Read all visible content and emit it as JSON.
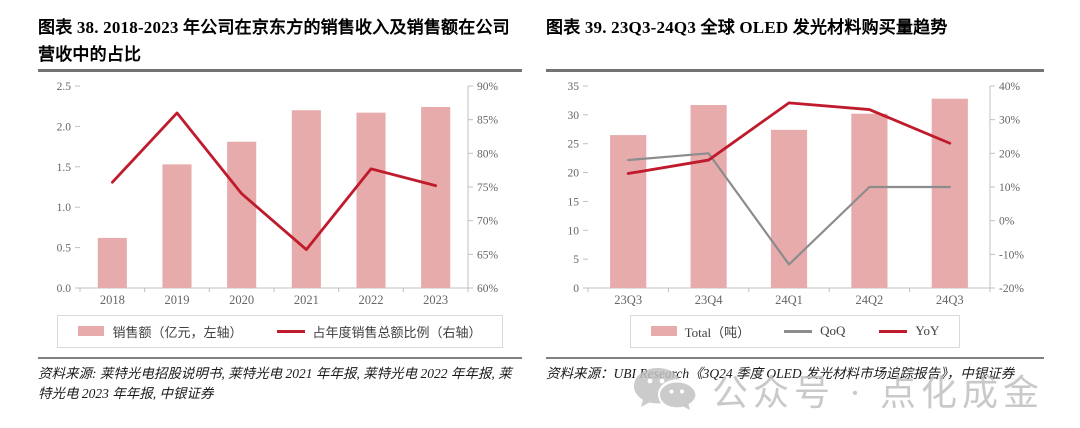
{
  "figures": [
    {
      "title": "图表 38. 2018-2023 年公司在京东方的销售收入及销售额在公司营收中的占比",
      "source": "资料来源: 莱特光电招股说明书, 莱特光电 2021 年年报, 莱特光电 2022 年年报, 莱特光电 2023 年年报, 中银证券"
    },
    {
      "title": "图表 39. 23Q3-24Q3 全球 OLED 发光材料购买量趋势",
      "source": "资料来源：UBI Research《3Q24 季度 OLED 发光材料市场追踪报告》，中银证券"
    }
  ],
  "chart_data": [
    {
      "type": "combo_bar_line",
      "title": "图表 38. 2018-2023 年公司在京东方的销售收入及销售额在公司营收中的占比",
      "categories": [
        "2018",
        "2019",
        "2020",
        "2021",
        "2022",
        "2023"
      ],
      "series": [
        {
          "name": "销售额（亿元，左轴）",
          "kind": "bar",
          "axis": "left",
          "color": "#e7abab",
          "values": [
            0.62,
            1.53,
            1.81,
            2.2,
            2.17,
            2.24
          ]
        },
        {
          "name": "占年度销售总额比例（右轴）",
          "kind": "line",
          "axis": "right",
          "color": "#bf1b2c",
          "width": 2.8,
          "values": [
            75.7,
            86.0,
            74.0,
            65.7,
            77.7,
            75.2
          ]
        }
      ],
      "left_axis": {
        "min": 0,
        "max": 2.5,
        "step": 0.5,
        "labels": [
          "0.0",
          "0.5",
          "1.0",
          "1.5",
          "2.0",
          "2.5"
        ]
      },
      "right_axis": {
        "min": 60,
        "max": 90,
        "step": 5,
        "unit": "%",
        "labels": [
          "60%",
          "65%",
          "70%",
          "75%",
          "80%",
          "85%",
          "90%"
        ]
      },
      "grid": false,
      "legend_position": "bottom"
    },
    {
      "type": "combo_bar_line",
      "title": "图表 39. 23Q3-24Q3 全球 OLED 发光材料购买量趋势",
      "categories": [
        "23Q3",
        "23Q4",
        "24Q1",
        "24Q2",
        "24Q3"
      ],
      "series": [
        {
          "name": "Total（吨）",
          "kind": "bar",
          "axis": "left",
          "color": "#e7abab",
          "values": [
            26.5,
            31.7,
            27.4,
            30.2,
            32.8
          ]
        },
        {
          "name": "QoQ",
          "kind": "line",
          "axis": "right",
          "color": "#8c8c8c",
          "width": 2.2,
          "values": [
            18,
            20,
            -13,
            10,
            10
          ]
        },
        {
          "name": "YoY",
          "kind": "line",
          "axis": "right",
          "color": "#bf1b2c",
          "width": 2.8,
          "values": [
            14,
            18,
            35,
            33,
            23
          ]
        }
      ],
      "left_axis": {
        "min": 0,
        "max": 35,
        "step": 5,
        "labels": [
          "0",
          "5",
          "10",
          "15",
          "20",
          "25",
          "30",
          "35"
        ]
      },
      "right_axis": {
        "min": -20,
        "max": 40,
        "step": 10,
        "unit": "%",
        "labels": [
          "-20%",
          "-10%",
          "0%",
          "10%",
          "20%",
          "30%",
          "40%"
        ]
      },
      "grid": false,
      "legend_position": "bottom"
    }
  ],
  "watermark": {
    "icon": "wechat-icon",
    "text": "公众号 · 点化成金"
  },
  "style_colors": {
    "bar_fill": "#e7abab",
    "yoy_line": "#bf1b2c",
    "qoq_line": "#8c8c8c",
    "axis_line": "#c0c0c0",
    "tick_label": "#666666",
    "rule": "#737373",
    "watermark": "#c0c0c0"
  }
}
